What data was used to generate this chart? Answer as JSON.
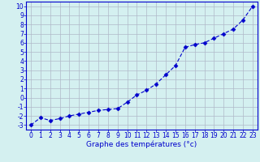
{
  "x": [
    0,
    1,
    2,
    3,
    4,
    5,
    6,
    7,
    8,
    9,
    10,
    11,
    12,
    13,
    14,
    15,
    16,
    17,
    18,
    19,
    20,
    21,
    22,
    23
  ],
  "y": [
    -3.0,
    -2.2,
    -2.5,
    -2.3,
    -2.0,
    -1.8,
    -1.6,
    -1.4,
    -1.3,
    -1.2,
    -0.5,
    0.3,
    0.8,
    1.5,
    2.5,
    3.5,
    5.5,
    5.8,
    6.0,
    6.5,
    7.0,
    7.5,
    8.5,
    10.0
  ],
  "xlim": [
    -0.5,
    23.5
  ],
  "ylim": [
    -3.5,
    10.5
  ],
  "yticks": [
    -3,
    -2,
    -1,
    0,
    1,
    2,
    3,
    4,
    5,
    6,
    7,
    8,
    9,
    10
  ],
  "xticks": [
    0,
    1,
    2,
    3,
    4,
    5,
    6,
    7,
    8,
    9,
    10,
    11,
    12,
    13,
    14,
    15,
    16,
    17,
    18,
    19,
    20,
    21,
    22,
    23
  ],
  "xlabel": "Graphe des températures (°c)",
  "line_color": "#0000cc",
  "marker": "D",
  "marker_size": 2.5,
  "bg_color": "#d4f0f0",
  "grid_color": "#b0b8c8",
  "axis_color": "#0000cc",
  "tick_color": "#0000cc",
  "xlabel_color": "#0000cc",
  "label_fontsize": 6.5,
  "tick_fontsize": 5.5
}
